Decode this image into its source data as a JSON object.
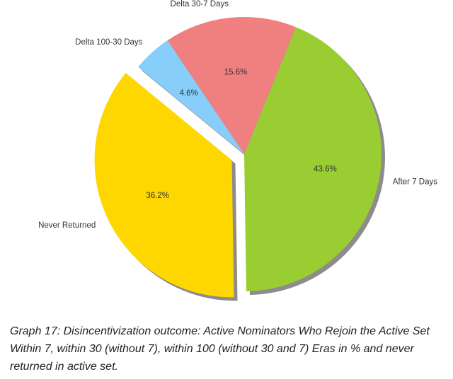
{
  "chart_data": {
    "type": "pie",
    "categories": [
      "Delta 30-7 Days",
      "After 7 Days",
      "Never Returned",
      "Delta 100-30 Days"
    ],
    "values": [
      15.6,
      43.6,
      36.2,
      4.6
    ],
    "value_labels": [
      "15.6%",
      "43.6%",
      "36.2%",
      "4.6%"
    ],
    "colors": [
      "#f08080",
      "#9acd32",
      "#ffd700",
      "#87cefa"
    ],
    "explode": [
      0,
      0,
      0.1,
      0
    ],
    "shadow": true
  },
  "caption": "Graph 17: Disincentivization outcome: Active Nominators Who Rejoin the Active Set Within 7, within 30 (without 7), within 100 (without 30 and 7) Eras in % and never returned in active set."
}
